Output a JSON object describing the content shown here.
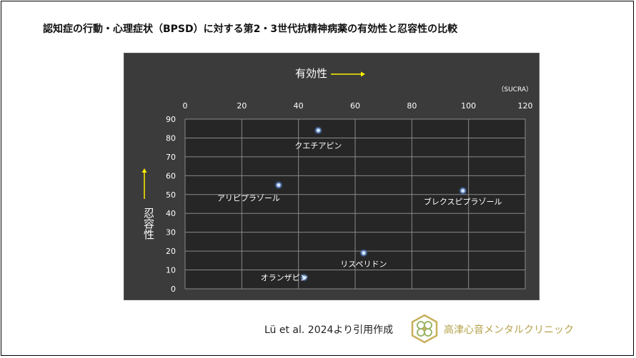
{
  "page_title": "認知症の行動・心理症状（BPSD）に対する第2・3世代抗精神病薬の有効性と忍容性の比較",
  "chart_data": {
    "type": "scatter",
    "xlabel": "有効性",
    "ylabel": "忍容性",
    "unit_label": "（SUCRA）",
    "xlim": [
      0,
      120
    ],
    "ylim": [
      0,
      90
    ],
    "x_ticks": [
      0,
      20,
      40,
      60,
      80,
      100,
      120
    ],
    "y_ticks": [
      0,
      10,
      20,
      30,
      40,
      50,
      60,
      70,
      80,
      90
    ],
    "x_axis_position": "top",
    "grid": true,
    "points": [
      {
        "label": "クエチアピン",
        "x": 47,
        "y": 84
      },
      {
        "label": "アリピプラゾール",
        "x": 33,
        "y": 55
      },
      {
        "label": "ブレクスピプラゾール",
        "x": 98,
        "y": 52
      },
      {
        "label": "リスペリドン",
        "x": 63,
        "y": 19
      },
      {
        "label": "オランザピン",
        "x": 42,
        "y": 6
      }
    ],
    "colors": {
      "background": "#3b3b3b",
      "plot_area": "#262626",
      "grid": "#8a8a8a",
      "text": "#ffffff",
      "axis_arrow": "#ffee00",
      "point": "#4a7fd1"
    }
  },
  "citation": "Lü et al. 2024より引用作成",
  "clinic": {
    "name": "高津心音メンタルクリニック",
    "logo_icon": "clover-hexagon-logo",
    "color": "#b5a14a"
  }
}
